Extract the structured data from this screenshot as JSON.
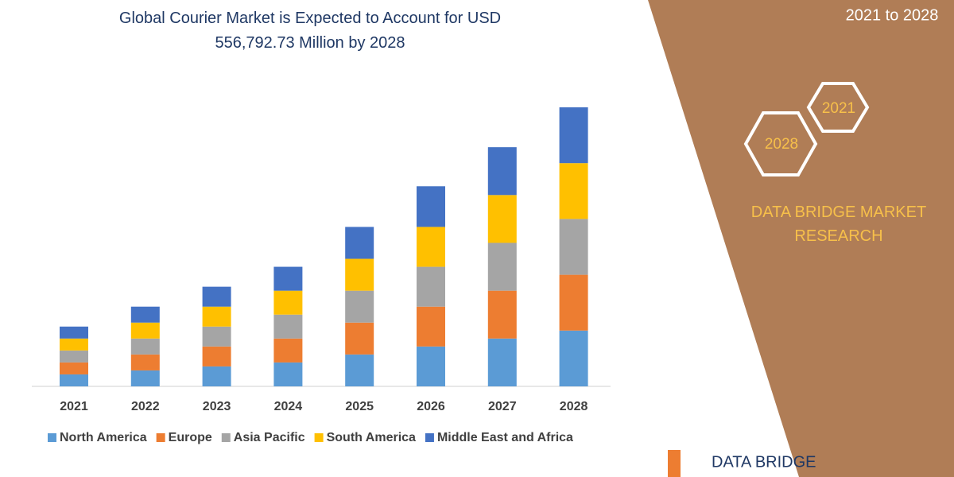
{
  "chart_data": {
    "type": "stacked-bar",
    "title": "Global Courier Market is Expected to Account for USD 556,792.73 Million by 2028",
    "categories": [
      "2021",
      "2022",
      "2023",
      "2024",
      "2025",
      "2026",
      "2027",
      "2028"
    ],
    "series": [
      {
        "name": "North America",
        "color": "#5b9bd5",
        "values": [
          15,
          20,
          25,
          30,
          40,
          50,
          60,
          70
        ]
      },
      {
        "name": "Europe",
        "color": "#ed7d31",
        "values": [
          15,
          20,
          25,
          30,
          40,
          50,
          60,
          70
        ]
      },
      {
        "name": "Asia Pacific",
        "color": "#a5a5a5",
        "values": [
          15,
          20,
          25,
          30,
          40,
          50,
          60,
          70
        ]
      },
      {
        "name": "South America",
        "color": "#ffc000",
        "values": [
          15,
          20,
          25,
          30,
          40,
          50,
          60,
          70
        ]
      },
      {
        "name": "Middle East and Africa",
        "color": "#4472c4",
        "values": [
          15,
          20,
          25,
          30,
          40,
          51,
          60,
          70
        ]
      }
    ],
    "legend": "bottom"
  },
  "side_panel": {
    "period": "2021 to 2028",
    "hexagons": [
      "2021",
      "2028"
    ],
    "brand": "DATA BRIDGE MARKET RESEARCH",
    "logo": "DATA BRIDGE"
  }
}
